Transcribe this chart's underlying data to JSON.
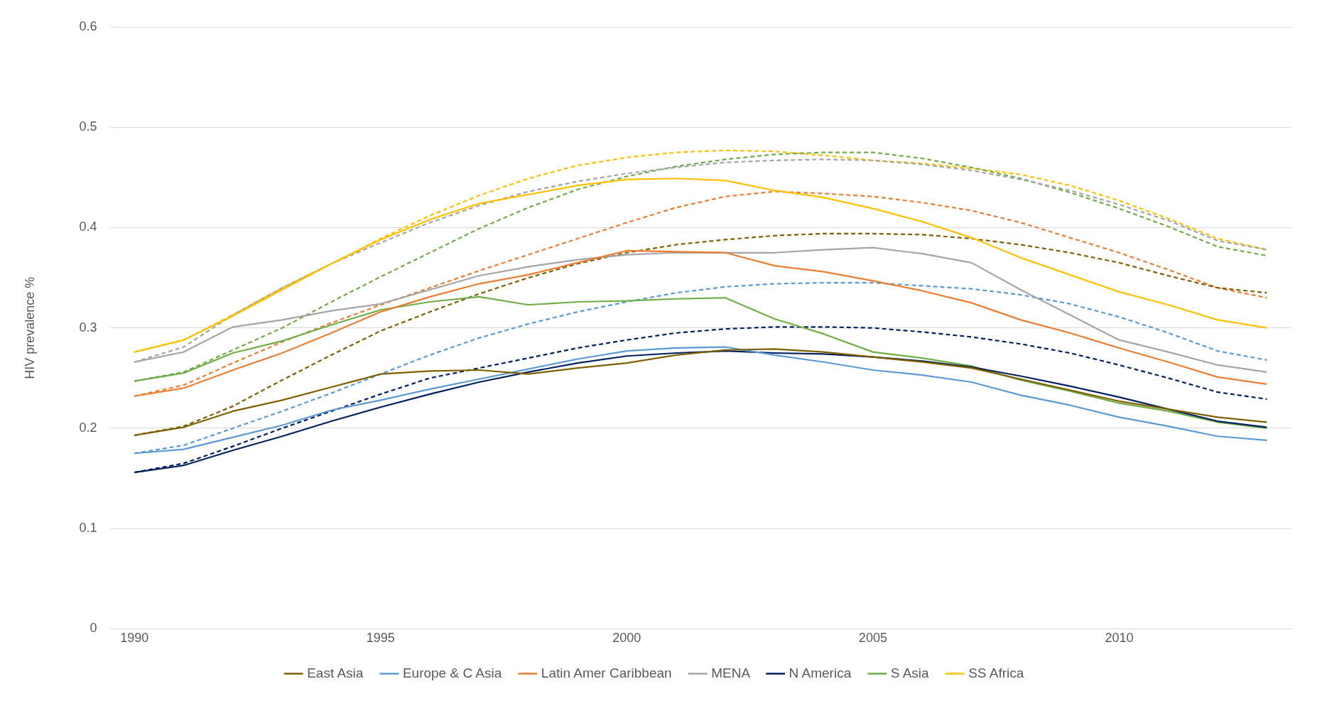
{
  "chart_data": {
    "type": "line",
    "ylabel": "HIV prevalence %",
    "x": [
      1990,
      1991,
      1992,
      1993,
      1994,
      1995,
      1996,
      1997,
      1998,
      1999,
      2000,
      2001,
      2002,
      2003,
      2004,
      2005,
      2006,
      2007,
      2008,
      2009,
      2010,
      2011,
      2012,
      2013
    ],
    "xlim": [
      1989.5,
      2013.5
    ],
    "xticks": [
      1990,
      1995,
      2000,
      2005,
      2010
    ],
    "ylim": [
      0,
      0.6
    ],
    "yticks": [
      0,
      0.1,
      0.2,
      0.3,
      0.4,
      0.5,
      0.6
    ],
    "grid": "y",
    "legend": "bottom",
    "marker": "none",
    "line_style": "solid",
    "series": [
      {
        "name": "East Asia",
        "color": "#7f6000",
        "values": [
          0.193,
          0.201,
          0.217,
          0.228,
          0.241,
          0.254,
          0.257,
          0.258,
          0.254,
          0.26,
          0.265,
          0.273,
          0.278,
          0.279,
          0.276,
          0.271,
          0.266,
          0.26,
          0.249,
          0.238,
          0.227,
          0.219,
          0.211,
          0.206
        ]
      },
      {
        "name": "Europe & C Asia",
        "color": "#5b9bd5",
        "values": [
          0.175,
          0.179,
          0.191,
          0.203,
          0.218,
          0.228,
          0.239,
          0.249,
          0.259,
          0.269,
          0.277,
          0.28,
          0.281,
          0.273,
          0.266,
          0.258,
          0.253,
          0.246,
          0.233,
          0.223,
          0.211,
          0.202,
          0.192,
          0.188
        ]
      },
      {
        "name": "Latin Amer Caribbean",
        "color": "#ed7d31",
        "values": [
          0.232,
          0.24,
          0.258,
          0.275,
          0.295,
          0.316,
          0.331,
          0.344,
          0.353,
          0.365,
          0.377,
          0.376,
          0.375,
          0.362,
          0.356,
          0.347,
          0.337,
          0.325,
          0.308,
          0.295,
          0.28,
          0.266,
          0.251,
          0.244
        ]
      },
      {
        "name": "MENA",
        "color": "#a5a5a5",
        "values": [
          0.266,
          0.276,
          0.301,
          0.308,
          0.317,
          0.324,
          0.338,
          0.352,
          0.361,
          0.368,
          0.373,
          0.375,
          0.375,
          0.375,
          0.378,
          0.38,
          0.374,
          0.365,
          0.338,
          0.313,
          0.288,
          0.276,
          0.263,
          0.256
        ]
      },
      {
        "name": "N America",
        "color": "#002060",
        "values": [
          0.156,
          0.163,
          0.178,
          0.192,
          0.207,
          0.221,
          0.234,
          0.246,
          0.256,
          0.265,
          0.272,
          0.275,
          0.277,
          0.275,
          0.274,
          0.271,
          0.267,
          0.261,
          0.252,
          0.242,
          0.231,
          0.219,
          0.207,
          0.201
        ]
      },
      {
        "name": "S Asia",
        "color": "#70ad47",
        "values": [
          0.247,
          0.255,
          0.275,
          0.287,
          0.303,
          0.318,
          0.326,
          0.331,
          0.323,
          0.326,
          0.327,
          0.329,
          0.33,
          0.309,
          0.294,
          0.276,
          0.27,
          0.262,
          0.248,
          0.237,
          0.225,
          0.217,
          0.206,
          0.2
        ]
      },
      {
        "name": "SS Africa",
        "color": "#ffc000",
        "values": [
          0.276,
          0.288,
          0.312,
          0.338,
          0.364,
          0.388,
          0.408,
          0.424,
          0.433,
          0.442,
          0.448,
          0.449,
          0.447,
          0.437,
          0.43,
          0.419,
          0.406,
          0.39,
          0.37,
          0.353,
          0.336,
          0.323,
          0.308,
          0.3
        ]
      },
      {
        "color": "#7f6000",
        "line_style": "dashed",
        "values": [
          0.193,
          0.202,
          0.222,
          0.248,
          0.273,
          0.297,
          0.316,
          0.334,
          0.35,
          0.364,
          0.375,
          0.383,
          0.388,
          0.392,
          0.394,
          0.394,
          0.393,
          0.389,
          0.383,
          0.375,
          0.365,
          0.352,
          0.34,
          0.335
        ]
      },
      {
        "color": "#5b9bd5",
        "line_style": "dashed",
        "values": [
          0.175,
          0.183,
          0.2,
          0.217,
          0.235,
          0.254,
          0.273,
          0.29,
          0.304,
          0.316,
          0.326,
          0.335,
          0.341,
          0.344,
          0.345,
          0.345,
          0.342,
          0.339,
          0.333,
          0.324,
          0.311,
          0.295,
          0.277,
          0.268
        ]
      },
      {
        "color": "#ed7d31",
        "line_style": "dashed",
        "values": [
          0.232,
          0.243,
          0.265,
          0.286,
          0.305,
          0.323,
          0.34,
          0.357,
          0.373,
          0.389,
          0.405,
          0.42,
          0.431,
          0.436,
          0.434,
          0.431,
          0.425,
          0.417,
          0.405,
          0.39,
          0.375,
          0.358,
          0.34,
          0.33
        ]
      },
      {
        "color": "#a5a5a5",
        "line_style": "dashed",
        "values": [
          0.266,
          0.281,
          0.313,
          0.34,
          0.364,
          0.385,
          0.405,
          0.422,
          0.436,
          0.446,
          0.454,
          0.46,
          0.465,
          0.467,
          0.468,
          0.467,
          0.463,
          0.457,
          0.448,
          0.437,
          0.423,
          0.407,
          0.387,
          0.378
        ]
      },
      {
        "color": "#002060",
        "line_style": "dashed",
        "values": [
          0.156,
          0.165,
          0.182,
          0.2,
          0.217,
          0.234,
          0.25,
          0.26,
          0.27,
          0.28,
          0.288,
          0.295,
          0.299,
          0.301,
          0.301,
          0.3,
          0.296,
          0.291,
          0.284,
          0.275,
          0.263,
          0.25,
          0.236,
          0.229
        ]
      },
      {
        "color": "#70ad47",
        "line_style": "dashed",
        "values": [
          0.247,
          0.256,
          0.278,
          0.3,
          0.326,
          0.351,
          0.375,
          0.399,
          0.42,
          0.438,
          0.451,
          0.461,
          0.468,
          0.473,
          0.475,
          0.475,
          0.469,
          0.46,
          0.449,
          0.435,
          0.419,
          0.401,
          0.381,
          0.372
        ]
      },
      {
        "color": "#ffc000",
        "line_style": "dashed",
        "values": [
          0.276,
          0.288,
          0.313,
          0.34,
          0.364,
          0.389,
          0.412,
          0.432,
          0.449,
          0.462,
          0.47,
          0.475,
          0.477,
          0.476,
          0.472,
          0.467,
          0.464,
          0.459,
          0.453,
          0.442,
          0.427,
          0.409,
          0.389,
          0.378
        ]
      }
    ]
  }
}
